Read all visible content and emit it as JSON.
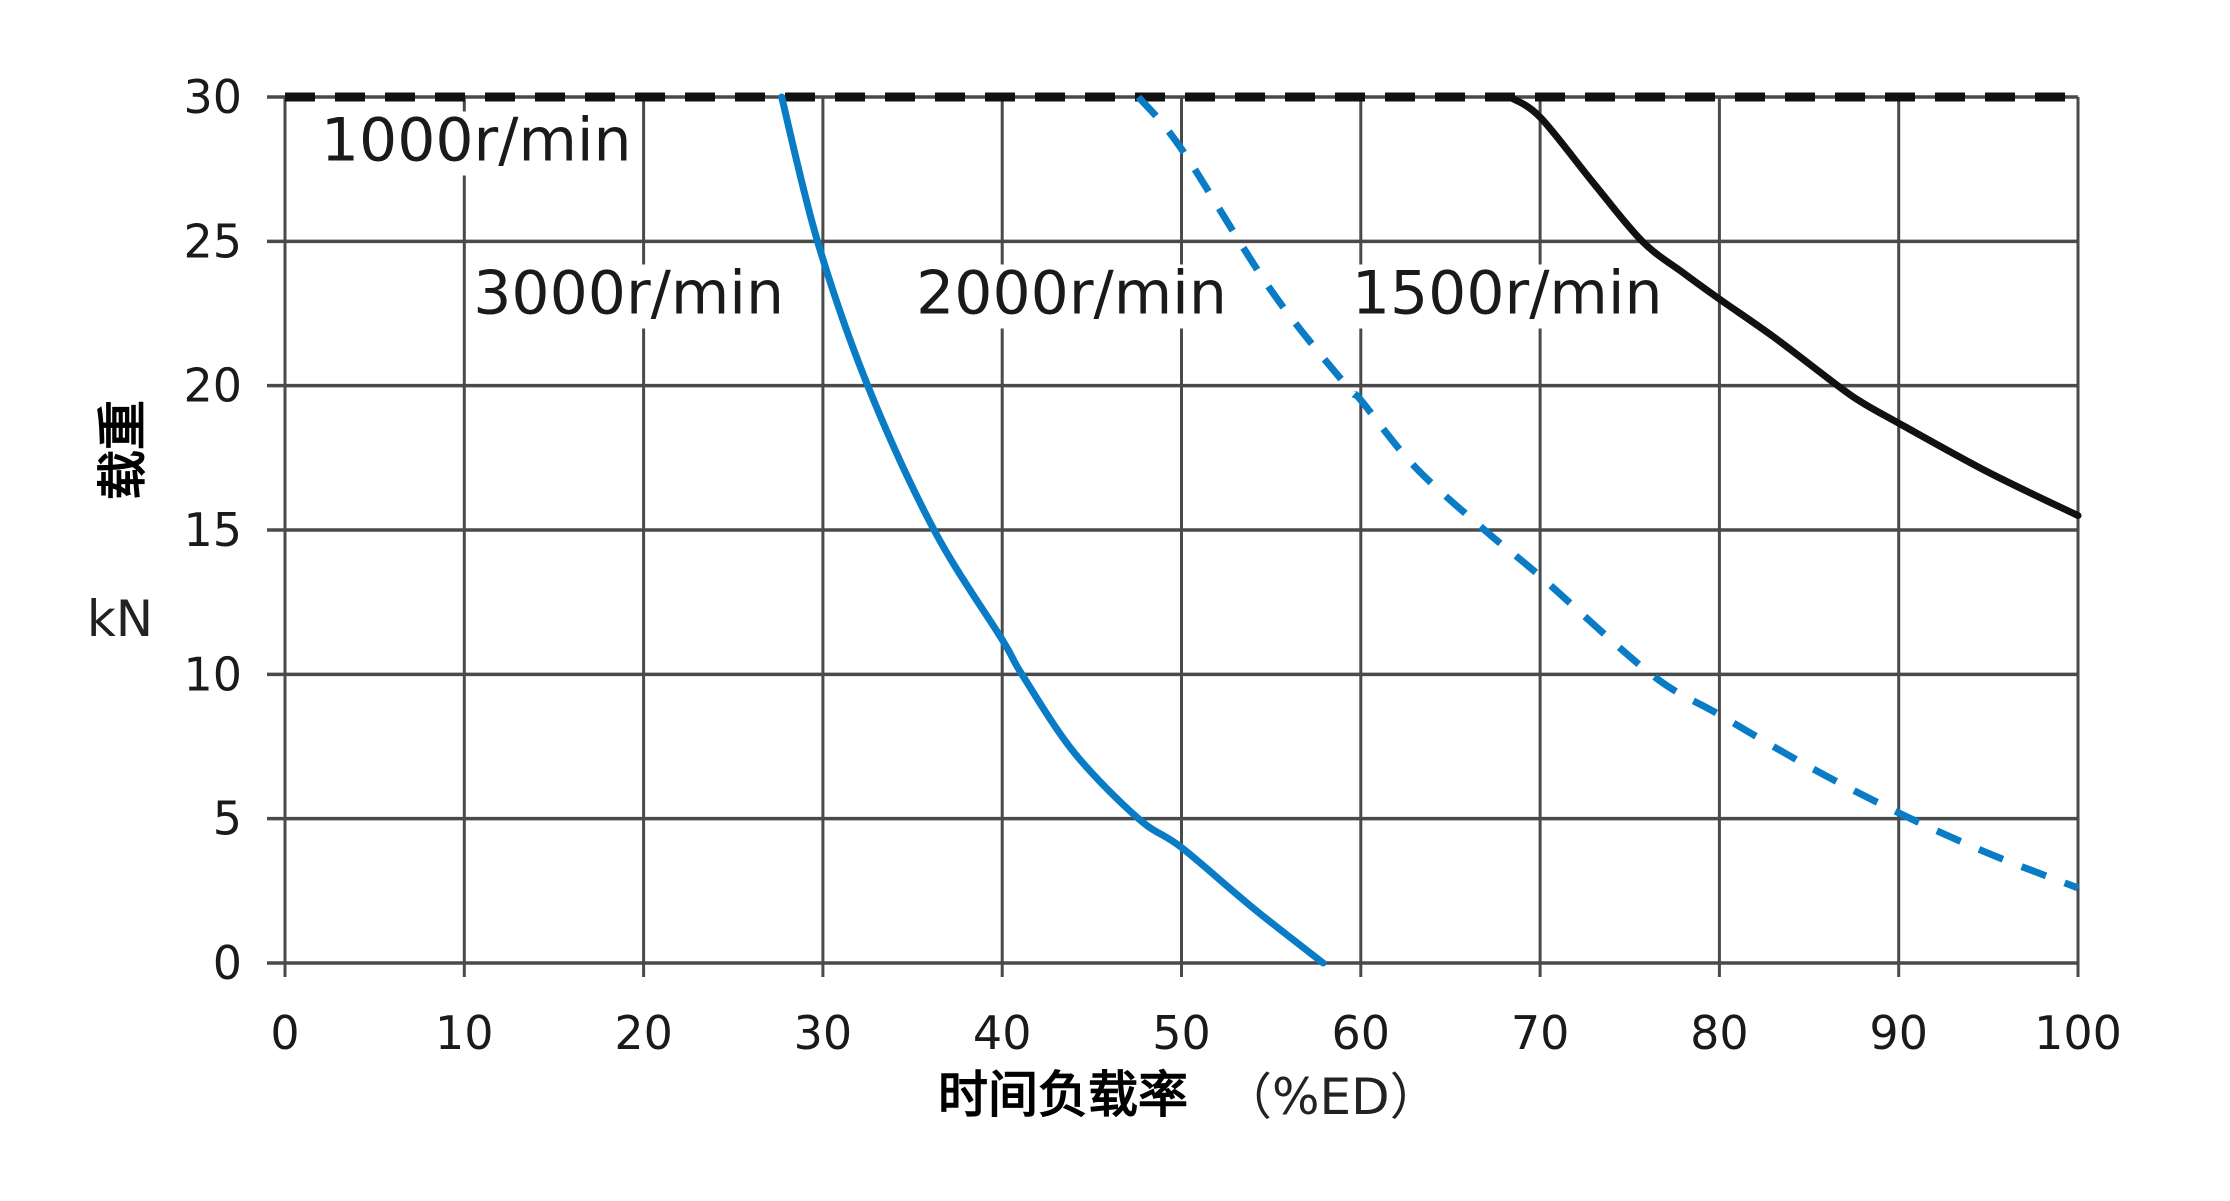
{
  "chart_data": {
    "type": "line",
    "title": "",
    "xlabel": "时间负载率（%ED）",
    "xlabel_main": "时间负载率",
    "xlabel_unit": "（%ED）",
    "ylabel": "载重 kN",
    "ylabel_main": "载重",
    "ylabel_unit": "kN",
    "xlim": [
      0,
      100
    ],
    "ylim": [
      0,
      30
    ],
    "xticks": [
      0,
      10,
      20,
      30,
      40,
      50,
      60,
      70,
      80,
      90,
      100
    ],
    "yticks": [
      0,
      5,
      10,
      15,
      20,
      25,
      30
    ],
    "grid": true,
    "legend": "inline labels",
    "colors": {
      "blue": "#0a7cc6",
      "black": "#111111",
      "grid": "#555555"
    },
    "series": [
      {
        "name": "1000r/min",
        "style": "dashed",
        "color": "#111111",
        "x": [
          0,
          100
        ],
        "y": [
          30,
          30
        ],
        "label_pos": [
          2,
          27.8
        ]
      },
      {
        "name": "3000r/min",
        "style": "solid",
        "color": "#0a7cc6",
        "x": [
          27.7,
          29.7,
          32.5,
          36.2,
          40,
          41.1,
          44,
          47.6,
          50,
          54,
          57.9
        ],
        "y": [
          30,
          25,
          20,
          15,
          11.2,
          10,
          7.3,
          5,
          4.0,
          1.9,
          0
        ],
        "label_pos": [
          10.5,
          22.5
        ]
      },
      {
        "name": "2000r/min",
        "style": "dashed",
        "color": "#0a7cc6",
        "x": [
          47.6,
          50,
          55,
          59.2,
          60,
          63,
          66.9,
          70,
          76.2,
          80,
          85,
          90,
          95,
          100
        ],
        "y": [
          30,
          28.2,
          23.3,
          20,
          19.5,
          17.2,
          15,
          13.4,
          10,
          8.6,
          6.8,
          5.2,
          3.8,
          2.6
        ],
        "label_pos": [
          35.2,
          22.5
        ]
      },
      {
        "name": "1500r/min",
        "style": "solid",
        "color": "#111111",
        "x": [
          68.3,
          70,
          73,
          75.7,
          78,
          80,
          83,
          86.6,
          88,
          90,
          95,
          100
        ],
        "y": [
          30,
          29.3,
          27,
          25,
          23.9,
          23.0,
          21.7,
          20,
          19.4,
          18.7,
          17.0,
          15.5
        ],
        "label_pos": [
          59.5,
          22.5
        ]
      }
    ]
  }
}
